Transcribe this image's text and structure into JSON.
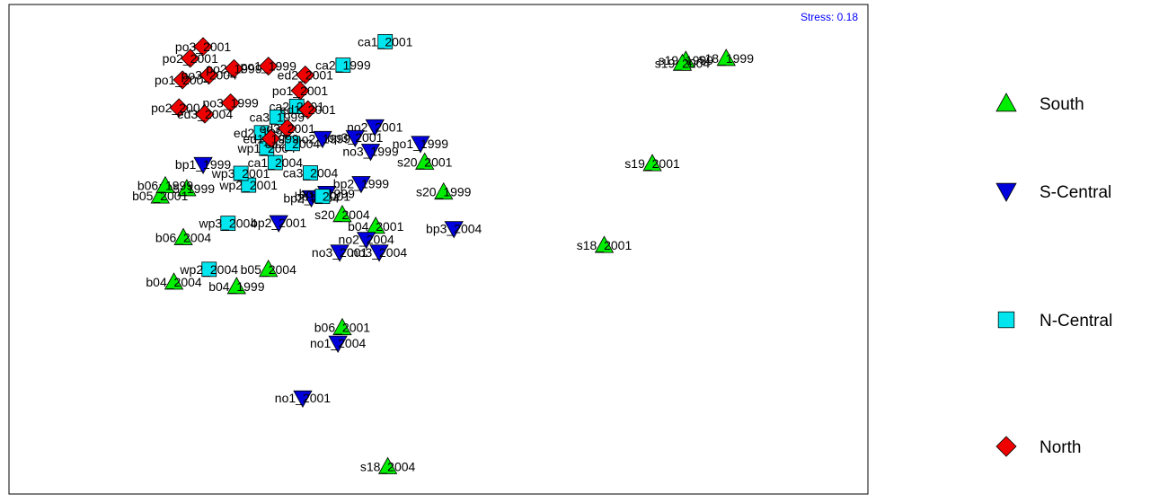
{
  "chart_data": {
    "type": "scatter",
    "title": "",
    "xlabel": "",
    "ylabel": "",
    "annotation": "Stress: 0.18",
    "annotation_color": "#0000ff",
    "grid": false,
    "legend_position": "right",
    "xlim": [
      0,
      100
    ],
    "ylim": [
      0,
      100
    ],
    "groups": [
      {
        "name": "South",
        "marker": "triangle-up",
        "color": "#00ee00"
      },
      {
        "name": "S-Central",
        "marker": "triangle-down",
        "color": "#0000dd"
      },
      {
        "name": "N-Central",
        "marker": "square",
        "color": "#00e5ee"
      },
      {
        "name": "North",
        "marker": "diamond",
        "color": "#ee0000"
      }
    ],
    "points": [
      {
        "label": "s18_1999",
        "group": "South",
        "x": 83.5,
        "y": 89.0
      },
      {
        "label": "s19_1999",
        "group": "South",
        "x": 78.8,
        "y": 88.6
      },
      {
        "label": "s19_2004",
        "group": "South",
        "x": 78.4,
        "y": 88.0
      },
      {
        "label": "s19_2001",
        "group": "South",
        "x": 74.9,
        "y": 67.5
      },
      {
        "label": "s18_2001",
        "group": "South",
        "x": 69.3,
        "y": 50.8
      },
      {
        "label": "s20_1999",
        "group": "South",
        "x": 50.6,
        "y": 61.7
      },
      {
        "label": "s20_2001",
        "group": "South",
        "x": 48.4,
        "y": 67.8
      },
      {
        "label": "b04_2001",
        "group": "South",
        "x": 42.7,
        "y": 54.7
      },
      {
        "label": "s20_2004",
        "group": "South",
        "x": 38.8,
        "y": 57.1
      },
      {
        "label": "b06_2001",
        "group": "South",
        "x": 38.8,
        "y": 34.0
      },
      {
        "label": "s18_2004",
        "group": "South",
        "x": 44.1,
        "y": 5.6
      },
      {
        "label": "b05_2004",
        "group": "South",
        "x": 30.2,
        "y": 45.9
      },
      {
        "label": "b04_1999",
        "group": "South",
        "x": 26.5,
        "y": 42.4
      },
      {
        "label": "b04_2004",
        "group": "South",
        "x": 19.2,
        "y": 43.3
      },
      {
        "label": "b06_2004",
        "group": "South",
        "x": 20.3,
        "y": 52.4
      },
      {
        "label": "b05_1999",
        "group": "South",
        "x": 20.7,
        "y": 62.4
      },
      {
        "label": "b05_2001",
        "group": "South",
        "x": 17.6,
        "y": 60.9
      },
      {
        "label": "b06_1999",
        "group": "South",
        "x": 18.2,
        "y": 63.0
      },
      {
        "label": "bp3_2004",
        "group": "S-Central",
        "x": 51.8,
        "y": 54.2
      },
      {
        "label": "no2_2001",
        "group": "S-Central",
        "x": 42.6,
        "y": 75.0
      },
      {
        "label": "no1_1999",
        "group": "S-Central",
        "x": 47.9,
        "y": 71.6
      },
      {
        "label": "bp3_2001",
        "group": "S-Central",
        "x": 40.3,
        "y": 72.8
      },
      {
        "label": "no3_1999",
        "group": "S-Central",
        "x": 42.1,
        "y": 70.0
      },
      {
        "label": "no3_2004",
        "group": "S-Central",
        "x": 43.1,
        "y": 49.4
      },
      {
        "label": "no2_2004",
        "group": "S-Central",
        "x": 41.6,
        "y": 52.0
      },
      {
        "label": "no3_2001",
        "group": "S-Central",
        "x": 38.5,
        "y": 49.4
      },
      {
        "label": "bp2_2001",
        "group": "S-Central",
        "x": 31.4,
        "y": 55.4
      },
      {
        "label": "bp2_2004",
        "group": "S-Central",
        "x": 35.2,
        "y": 60.5
      },
      {
        "label": "bp3_1999",
        "group": "S-Central",
        "x": 37.0,
        "y": 61.4
      },
      {
        "label": "bp2_1999",
        "group": "S-Central",
        "x": 41.0,
        "y": 63.4
      },
      {
        "label": "no1_2004",
        "group": "S-Central",
        "x": 38.3,
        "y": 30.8
      },
      {
        "label": "no1_2001",
        "group": "S-Central",
        "x": 34.2,
        "y": 19.6
      },
      {
        "label": "bp1_1999",
        "group": "S-Central",
        "x": 22.6,
        "y": 67.3
      },
      {
        "label": "no2_1999",
        "group": "S-Central",
        "x": 36.5,
        "y": 72.6
      },
      {
        "label": "ca1_2001",
        "group": "N-Central",
        "x": 43.8,
        "y": 92.4
      },
      {
        "label": "ca2_1999",
        "group": "N-Central",
        "x": 38.9,
        "y": 87.6
      },
      {
        "label": "ca3_2004",
        "group": "N-Central",
        "x": 35.1,
        "y": 65.6
      },
      {
        "label": "bp1_2001",
        "group": "N-Central",
        "x": 36.5,
        "y": 60.8
      },
      {
        "label": "wp3_2004",
        "group": "N-Central",
        "x": 25.5,
        "y": 55.3
      },
      {
        "label": "wp2_2004",
        "group": "N-Central",
        "x": 23.3,
        "y": 45.9
      },
      {
        "label": "wp2_2001",
        "group": "N-Central",
        "x": 27.9,
        "y": 63.1
      },
      {
        "label": "wp3_2001",
        "group": "N-Central",
        "x": 27.0,
        "y": 65.5
      },
      {
        "label": "ca1_2004",
        "group": "N-Central",
        "x": 31.0,
        "y": 67.7
      },
      {
        "label": "wp1_2004",
        "group": "N-Central",
        "x": 30.0,
        "y": 70.6
      },
      {
        "label": "ca2_2004",
        "group": "N-Central",
        "x": 33.0,
        "y": 71.6
      },
      {
        "label": "ca2_2001",
        "group": "N-Central",
        "x": 33.5,
        "y": 79.2
      },
      {
        "label": "ca3_1999",
        "group": "N-Central",
        "x": 31.2,
        "y": 77.0
      },
      {
        "label": "ed2_1999",
        "group": "N-Central",
        "x": 29.4,
        "y": 73.8
      },
      {
        "label": "po3_2001",
        "group": "North",
        "x": 22.6,
        "y": 91.4
      },
      {
        "label": "po2_2001",
        "group": "North",
        "x": 21.1,
        "y": 89.0
      },
      {
        "label": "po1_2004",
        "group": "North",
        "x": 20.2,
        "y": 84.6
      },
      {
        "label": "po3_2004",
        "group": "North",
        "x": 23.3,
        "y": 85.6
      },
      {
        "label": "po2_1999",
        "group": "North",
        "x": 26.2,
        "y": 86.9
      },
      {
        "label": "po1_1999",
        "group": "North",
        "x": 30.2,
        "y": 87.4
      },
      {
        "label": "ed2_2001",
        "group": "North",
        "x": 34.5,
        "y": 85.6
      },
      {
        "label": "po1_2001",
        "group": "North",
        "x": 33.9,
        "y": 82.4
      },
      {
        "label": "po2_2004",
        "group": "North",
        "x": 19.8,
        "y": 78.9
      },
      {
        "label": "po3_1999",
        "group": "North",
        "x": 25.8,
        "y": 79.9
      },
      {
        "label": "ed3_2004",
        "group": "North",
        "x": 22.8,
        "y": 77.6
      },
      {
        "label": "ed1_2001",
        "group": "North",
        "x": 34.8,
        "y": 78.5
      },
      {
        "label": "ed3_2001",
        "group": "North",
        "x": 32.4,
        "y": 74.7
      },
      {
        "label": "ed1_1999",
        "group": "North",
        "x": 30.5,
        "y": 72.6
      }
    ]
  }
}
